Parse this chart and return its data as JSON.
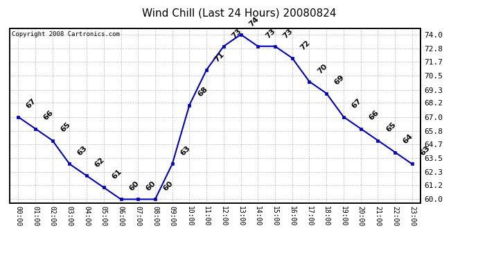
{
  "title": "Wind Chill (Last 24 Hours) 20080824",
  "copyright": "Copyright 2008 Cartronics.com",
  "hours": [
    "00:00",
    "01:00",
    "02:00",
    "03:00",
    "04:00",
    "05:00",
    "06:00",
    "07:00",
    "08:00",
    "09:00",
    "10:00",
    "11:00",
    "12:00",
    "13:00",
    "14:00",
    "15:00",
    "16:00",
    "17:00",
    "18:00",
    "19:00",
    "20:00",
    "21:00",
    "22:00",
    "23:00"
  ],
  "values": [
    67,
    66,
    65,
    63,
    62,
    61,
    60,
    60,
    60,
    63,
    68,
    71,
    73,
    74,
    73,
    73,
    72,
    70,
    69,
    67,
    66,
    65,
    64,
    63
  ],
  "ylim_min": 60.0,
  "ylim_max": 74.0,
  "yticks": [
    60.0,
    61.2,
    62.3,
    63.5,
    64.7,
    65.8,
    67.0,
    68.2,
    69.3,
    70.5,
    71.7,
    72.8,
    74.0
  ],
  "line_color": "#0000bb",
  "marker_color": "#0000bb",
  "bg_color": "#ffffff",
  "grid_color": "#bbbbbb",
  "label_color": "#000000",
  "title_color": "#000000",
  "copyright_color": "#000000"
}
